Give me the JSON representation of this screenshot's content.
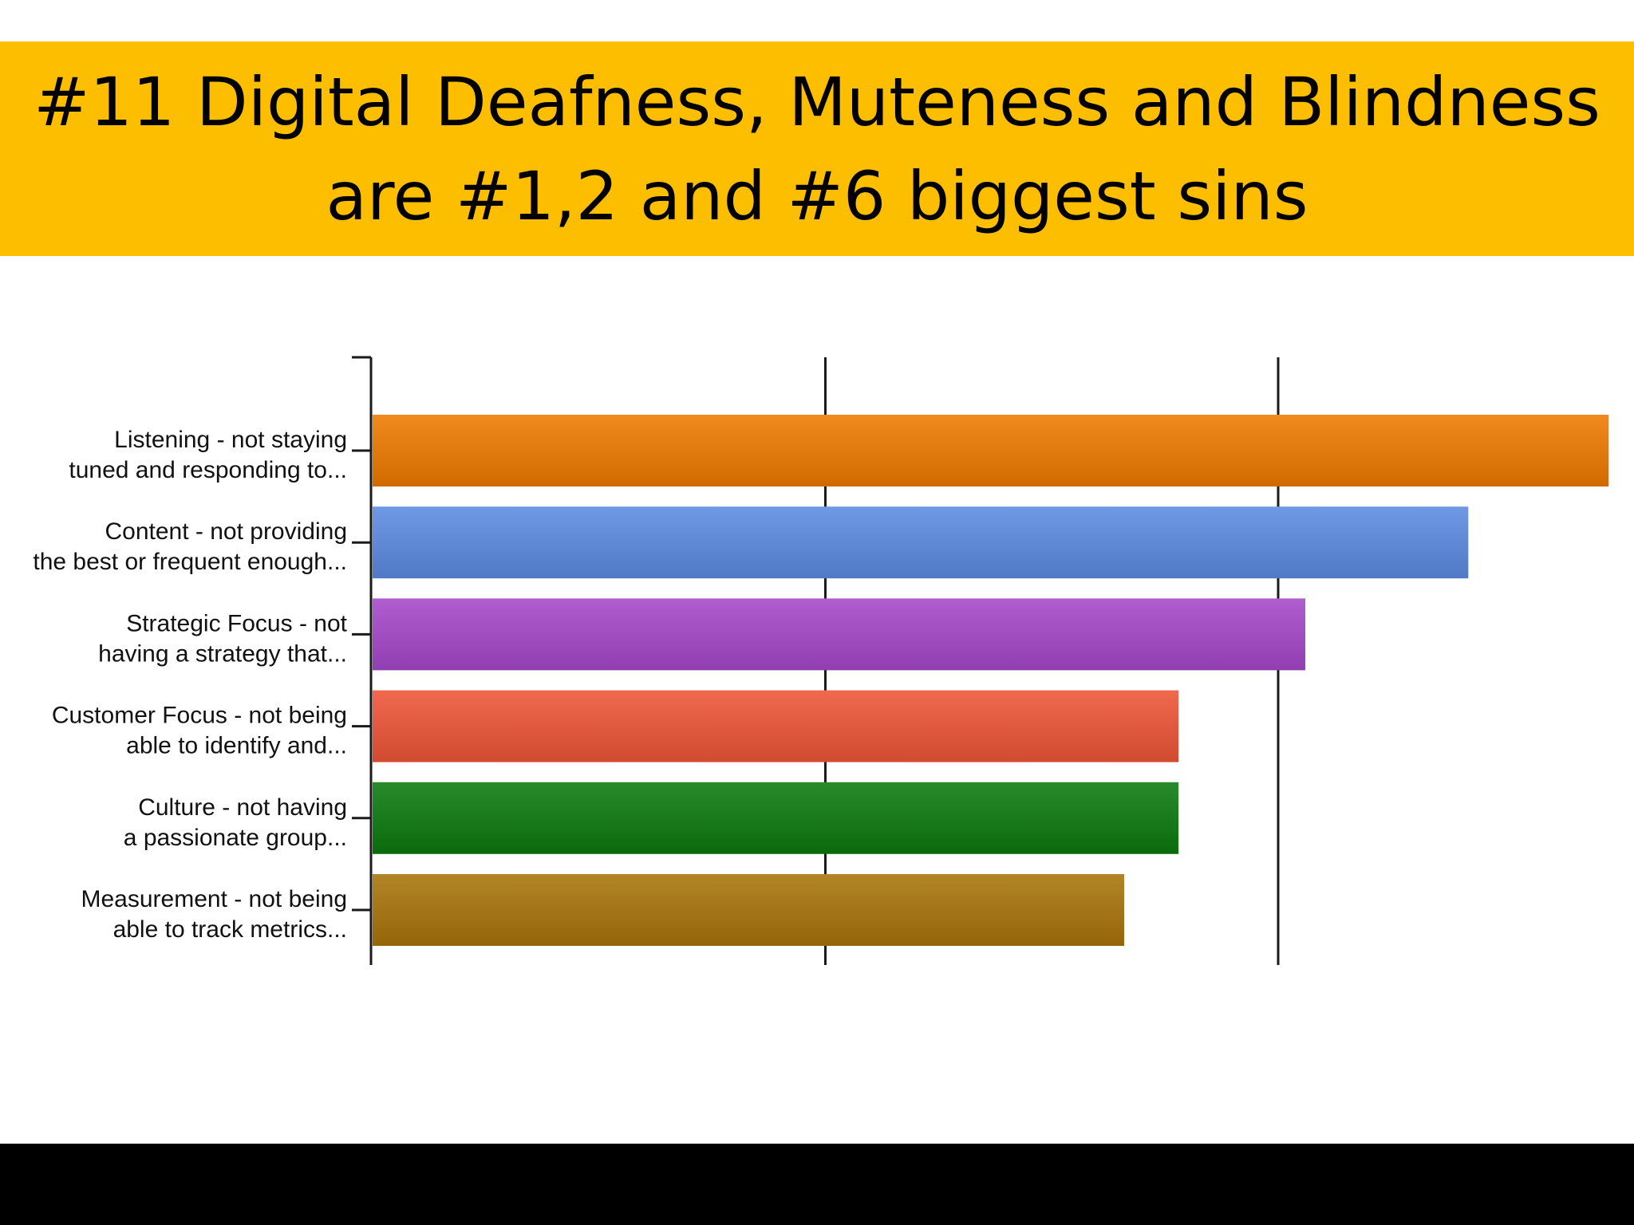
{
  "slide": {
    "title_line1": "#11 Digital Deafness, Muteness and Blindness",
    "title_line2": "are #1,2 and #6 biggest sins",
    "title_band_color": "#FDBE00",
    "footer_color": "#000000"
  },
  "chart_data": {
    "type": "bar",
    "orientation": "horizontal",
    "title": "",
    "xlabel": "",
    "ylabel": "",
    "x_gridlines": 2,
    "grid": true,
    "legend": false,
    "categories": [
      [
        "Listening - not staying",
        "tuned and responding to..."
      ],
      [
        "Content - not providing",
        "the best or frequent enough..."
      ],
      [
        "Strategic Focus - not",
        "having a strategy that..."
      ],
      [
        "Customer Focus - not being",
        "able to identify and..."
      ],
      [
        "Culture - not having",
        "a passionate group..."
      ],
      [
        "Measurement - not being",
        "able to track metrics..."
      ]
    ],
    "values": [
      2.73,
      2.42,
      2.06,
      1.78,
      1.78,
      1.66
    ],
    "colors": [
      "#EE7A00",
      "#5B8BE0",
      "#A547C8",
      "#EE5537",
      "#0C7A0E",
      "#A8740A"
    ]
  }
}
